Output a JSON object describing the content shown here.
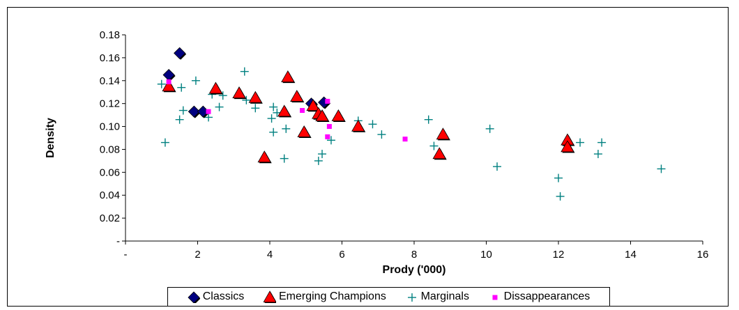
{
  "chart_data": {
    "type": "scatter",
    "title": "",
    "xlabel": "Prody ('000)",
    "ylabel": "Density",
    "xlim": [
      0,
      16
    ],
    "ylim": [
      0,
      0.18
    ],
    "x_ticks": [
      0,
      2,
      4,
      6,
      8,
      10,
      12,
      14,
      16
    ],
    "x_tick_labels": [
      "-",
      "2",
      "4",
      "6",
      "8",
      "10",
      "12",
      "14",
      "16"
    ],
    "y_ticks": [
      0,
      0.02,
      0.04,
      0.06,
      0.08,
      0.1,
      0.12,
      0.14,
      0.16,
      0.18
    ],
    "y_tick_labels": [
      "-",
      "0.02",
      "0.04",
      "0.06",
      "0.08",
      "0.10",
      "0.12",
      "0.14",
      "0.16",
      "0.18"
    ],
    "grid": false,
    "legend_position": "bottom",
    "series": [
      {
        "name": "Classics",
        "marker": "diamond",
        "color": "#000080",
        "points": [
          [
            1.5,
            0.164
          ],
          [
            1.2,
            0.145
          ],
          [
            1.9,
            0.113
          ],
          [
            2.15,
            0.113
          ],
          [
            5.15,
            0.12
          ],
          [
            5.5,
            0.121
          ]
        ]
      },
      {
        "name": "Emerging Champions",
        "marker": "triangle",
        "color": "#ff0000",
        "points": [
          [
            1.2,
            0.135
          ],
          [
            2.5,
            0.133
          ],
          [
            3.15,
            0.129
          ],
          [
            3.6,
            0.125
          ],
          [
            4.5,
            0.143
          ],
          [
            4.75,
            0.126
          ],
          [
            5.2,
            0.118
          ],
          [
            5.35,
            0.111
          ],
          [
            5.45,
            0.109
          ],
          [
            5.9,
            0.109
          ],
          [
            4.4,
            0.113
          ],
          [
            4.95,
            0.095
          ],
          [
            6.45,
            0.1
          ],
          [
            8.8,
            0.093
          ],
          [
            8.7,
            0.076
          ],
          [
            3.85,
            0.073
          ],
          [
            12.25,
            0.088
          ],
          [
            12.25,
            0.082
          ]
        ]
      },
      {
        "name": "Marginals",
        "marker": "plus",
        "color": "#008080",
        "points": [
          [
            1.0,
            0.137
          ],
          [
            1.55,
            0.134
          ],
          [
            1.95,
            0.14
          ],
          [
            1.6,
            0.114
          ],
          [
            1.5,
            0.106
          ],
          [
            1.1,
            0.086
          ],
          [
            2.4,
            0.128
          ],
          [
            2.7,
            0.127
          ],
          [
            2.6,
            0.117
          ],
          [
            2.3,
            0.108
          ],
          [
            3.3,
            0.148
          ],
          [
            3.35,
            0.123
          ],
          [
            3.6,
            0.116
          ],
          [
            4.1,
            0.117
          ],
          [
            4.2,
            0.112
          ],
          [
            4.05,
            0.107
          ],
          [
            4.1,
            0.095
          ],
          [
            4.45,
            0.098
          ],
          [
            4.4,
            0.072
          ],
          [
            5.35,
            0.07
          ],
          [
            5.45,
            0.076
          ],
          [
            5.7,
            0.088
          ],
          [
            6.45,
            0.105
          ],
          [
            6.85,
            0.102
          ],
          [
            7.1,
            0.093
          ],
          [
            8.4,
            0.106
          ],
          [
            8.55,
            0.083
          ],
          [
            10.1,
            0.098
          ],
          [
            10.3,
            0.065
          ],
          [
            12.0,
            0.055
          ],
          [
            12.05,
            0.039
          ],
          [
            12.6,
            0.086
          ],
          [
            13.1,
            0.076
          ],
          [
            13.2,
            0.086
          ],
          [
            14.85,
            0.063
          ]
        ]
      },
      {
        "name": "Dissappearances",
        "marker": "square",
        "color": "#ff00ff",
        "points": [
          [
            1.2,
            0.139
          ],
          [
            2.3,
            0.113
          ],
          [
            4.9,
            0.114
          ],
          [
            5.6,
            0.122
          ],
          [
            5.65,
            0.1
          ],
          [
            5.6,
            0.091
          ],
          [
            7.75,
            0.089
          ]
        ]
      }
    ]
  }
}
